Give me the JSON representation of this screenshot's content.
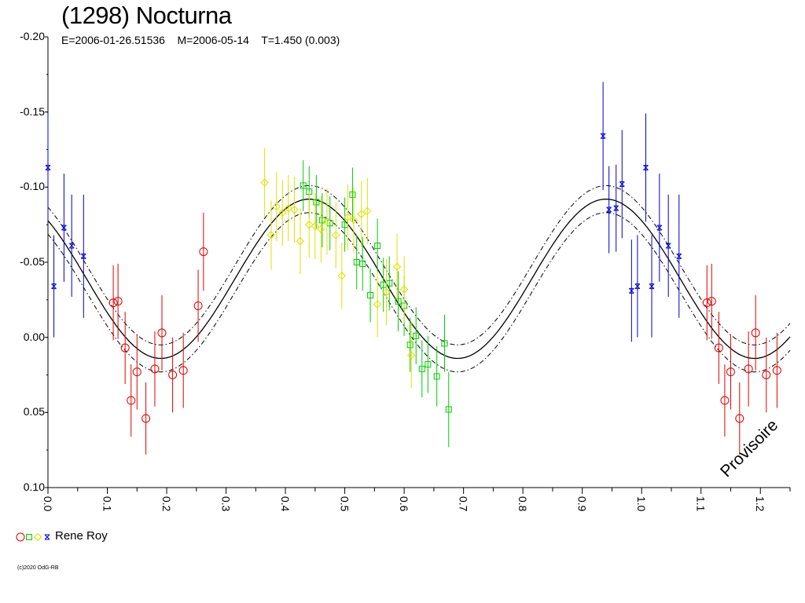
{
  "title": "(1298) Nocturna",
  "subtitle": "E=2006-01-26.51536    M=2006-05-14    T=1.450 (0.003)",
  "watermark": "Provisoire",
  "copyright": "(c)2020 OdG-RB",
  "legend": {
    "label": "Rene Roy",
    "markers": [
      {
        "shape": "circle",
        "color": "#e00000"
      },
      {
        "shape": "square",
        "color": "#00cc00"
      },
      {
        "shape": "diamond",
        "color": "#e0e000"
      },
      {
        "shape": "star",
        "color": "#0000cc"
      }
    ]
  },
  "chart_data": {
    "type": "scatter",
    "xlim": [
      0.0,
      1.25
    ],
    "ylim": [
      -0.2,
      0.1
    ],
    "y_inverted": true,
    "x_ticks": [
      "0.0",
      "0.1",
      "0.2",
      "0.3",
      "0.4",
      "0.5",
      "0.6",
      "0.7",
      "0.8",
      "0.9",
      "1.0",
      "1.1",
      "1.2"
    ],
    "y_ticks": [
      "-0.20",
      "-0.15",
      "-0.10",
      "-0.05",
      "0.00",
      "0.05",
      "0.10"
    ],
    "fit": {
      "mean": -0.039,
      "amplitude": 0.053,
      "phase_of_max": 0.44,
      "band": 0.009,
      "x": [
        0.0,
        0.05,
        0.1,
        0.15,
        0.2,
        0.25,
        0.3,
        0.35,
        0.4,
        0.45,
        0.5,
        0.55,
        0.6,
        0.65,
        0.7,
        0.75,
        0.8,
        0.85,
        0.9,
        0.95,
        1.0,
        1.05,
        1.1,
        1.15,
        1.2,
        1.25
      ],
      "y": [
        -0.078,
        -0.046,
        -0.009,
        0.009,
        0.013,
        -0.006,
        -0.035,
        -0.065,
        -0.087,
        -0.092,
        -0.081,
        -0.054,
        -0.024,
        0.0,
        0.014,
        0.01,
        -0.006,
        -0.035,
        -0.072,
        -0.091,
        -0.076,
        -0.046,
        -0.009,
        0.01,
        0.013,
        -0.002
      ]
    },
    "series": [
      {
        "name": "Rene Roy",
        "marker": "circle",
        "color": "#e00000",
        "points": [
          {
            "x": 0.11,
            "y": -0.023,
            "err": 0.025
          },
          {
            "x": 0.118,
            "y": -0.024,
            "err": 0.025
          },
          {
            "x": 0.13,
            "y": 0.007,
            "err": 0.024
          },
          {
            "x": 0.14,
            "y": 0.042,
            "err": 0.024
          },
          {
            "x": 0.15,
            "y": 0.023,
            "err": 0.025
          },
          {
            "x": 0.165,
            "y": 0.054,
            "err": 0.024
          },
          {
            "x": 0.18,
            "y": 0.021,
            "err": 0.025
          },
          {
            "x": 0.192,
            "y": -0.003,
            "err": 0.025
          },
          {
            "x": 0.21,
            "y": 0.025,
            "err": 0.025
          },
          {
            "x": 0.228,
            "y": 0.022,
            "err": 0.025
          },
          {
            "x": 0.253,
            "y": -0.021,
            "err": 0.024
          },
          {
            "x": 0.262,
            "y": -0.057,
            "err": 0.026
          },
          {
            "x": 1.11,
            "y": -0.023,
            "err": 0.025
          },
          {
            "x": 1.118,
            "y": -0.024,
            "err": 0.025
          },
          {
            "x": 1.13,
            "y": 0.007,
            "err": 0.024
          },
          {
            "x": 1.14,
            "y": 0.042,
            "err": 0.024
          },
          {
            "x": 1.15,
            "y": 0.023,
            "err": 0.025
          },
          {
            "x": 1.165,
            "y": 0.054,
            "err": 0.024
          },
          {
            "x": 1.18,
            "y": 0.021,
            "err": 0.025
          },
          {
            "x": 1.192,
            "y": -0.003,
            "err": 0.025
          },
          {
            "x": 1.21,
            "y": 0.025,
            "err": 0.025
          },
          {
            "x": 1.228,
            "y": 0.022,
            "err": 0.025
          }
        ]
      },
      {
        "name": "",
        "marker": "square",
        "color": "#00cc00",
        "points": [
          {
            "x": 0.43,
            "y": -0.101,
            "err": 0.017
          },
          {
            "x": 0.44,
            "y": -0.097,
            "err": 0.017
          },
          {
            "x": 0.452,
            "y": -0.09,
            "err": 0.018
          },
          {
            "x": 0.462,
            "y": -0.078,
            "err": 0.018
          },
          {
            "x": 0.475,
            "y": -0.076,
            "err": 0.018
          },
          {
            "x": 0.5,
            "y": -0.075,
            "err": 0.018
          },
          {
            "x": 0.513,
            "y": -0.095,
            "err": 0.018
          },
          {
            "x": 0.52,
            "y": -0.05,
            "err": 0.018
          },
          {
            "x": 0.53,
            "y": -0.049,
            "err": 0.018
          },
          {
            "x": 0.543,
            "y": -0.028,
            "err": 0.018
          },
          {
            "x": 0.555,
            "y": -0.061,
            "err": 0.018
          },
          {
            "x": 0.565,
            "y": -0.035,
            "err": 0.018
          },
          {
            "x": 0.575,
            "y": -0.036,
            "err": 0.018
          },
          {
            "x": 0.59,
            "y": -0.024,
            "err": 0.02
          },
          {
            "x": 0.6,
            "y": -0.021,
            "err": 0.02
          },
          {
            "x": 0.61,
            "y": 0.005,
            "err": 0.018
          },
          {
            "x": 0.62,
            "y": -0.001,
            "err": 0.019
          },
          {
            "x": 0.63,
            "y": 0.021,
            "err": 0.019
          },
          {
            "x": 0.64,
            "y": 0.018,
            "err": 0.019
          },
          {
            "x": 0.655,
            "y": 0.026,
            "err": 0.02
          },
          {
            "x": 0.668,
            "y": 0.004,
            "err": 0.019
          },
          {
            "x": 0.675,
            "y": 0.048,
            "err": 0.025
          }
        ]
      },
      {
        "name": "",
        "marker": "diamond",
        "color": "#e0e000",
        "points": [
          {
            "x": 0.365,
            "y": -0.103,
            "err": 0.023
          },
          {
            "x": 0.376,
            "y": -0.068,
            "err": 0.023
          },
          {
            "x": 0.385,
            "y": -0.087,
            "err": 0.023
          },
          {
            "x": 0.395,
            "y": -0.083,
            "err": 0.022
          },
          {
            "x": 0.405,
            "y": -0.086,
            "err": 0.022
          },
          {
            "x": 0.415,
            "y": -0.085,
            "err": 0.022
          },
          {
            "x": 0.425,
            "y": -0.064,
            "err": 0.022
          },
          {
            "x": 0.44,
            "y": -0.075,
            "err": 0.022
          },
          {
            "x": 0.45,
            "y": -0.074,
            "err": 0.022
          },
          {
            "x": 0.46,
            "y": -0.072,
            "err": 0.022
          },
          {
            "x": 0.47,
            "y": -0.077,
            "err": 0.022
          },
          {
            "x": 0.485,
            "y": -0.068,
            "err": 0.022
          },
          {
            "x": 0.495,
            "y": -0.041,
            "err": 0.022
          },
          {
            "x": 0.505,
            "y": -0.08,
            "err": 0.022
          },
          {
            "x": 0.515,
            "y": -0.078,
            "err": 0.022
          },
          {
            "x": 0.528,
            "y": -0.082,
            "err": 0.022
          },
          {
            "x": 0.538,
            "y": -0.084,
            "err": 0.022
          },
          {
            "x": 0.555,
            "y": -0.022,
            "err": 0.022
          },
          {
            "x": 0.57,
            "y": -0.03,
            "err": 0.022
          },
          {
            "x": 0.588,
            "y": -0.047,
            "err": 0.022
          },
          {
            "x": 0.6,
            "y": -0.032,
            "err": 0.022
          },
          {
            "x": 0.612,
            "y": 0.012,
            "err": 0.022
          }
        ]
      },
      {
        "name": "",
        "marker": "star",
        "color": "#0000cc",
        "points": [
          {
            "x": 0.0,
            "y": -0.113,
            "err": 0.036
          },
          {
            "x": 0.01,
            "y": -0.034,
            "err": 0.034
          },
          {
            "x": 0.027,
            "y": -0.073,
            "err": 0.036
          },
          {
            "x": 0.04,
            "y": -0.061,
            "err": 0.034
          },
          {
            "x": 0.06,
            "y": -0.054,
            "err": 0.041
          },
          {
            "x": 0.935,
            "y": -0.134,
            "err": 0.036
          },
          {
            "x": 0.945,
            "y": -0.085,
            "err": 0.029
          },
          {
            "x": 0.957,
            "y": -0.086,
            "err": 0.029
          },
          {
            "x": 0.967,
            "y": -0.102,
            "err": 0.036
          },
          {
            "x": 0.983,
            "y": -0.031,
            "err": 0.034
          },
          {
            "x": 0.993,
            "y": -0.034,
            "err": 0.034
          },
          {
            "x": 1.007,
            "y": -0.113,
            "err": 0.036
          },
          {
            "x": 1.017,
            "y": -0.034,
            "err": 0.034
          },
          {
            "x": 1.03,
            "y": -0.073,
            "err": 0.036
          },
          {
            "x": 1.045,
            "y": -0.061,
            "err": 0.034
          },
          {
            "x": 1.063,
            "y": -0.054,
            "err": 0.041
          }
        ]
      }
    ]
  }
}
